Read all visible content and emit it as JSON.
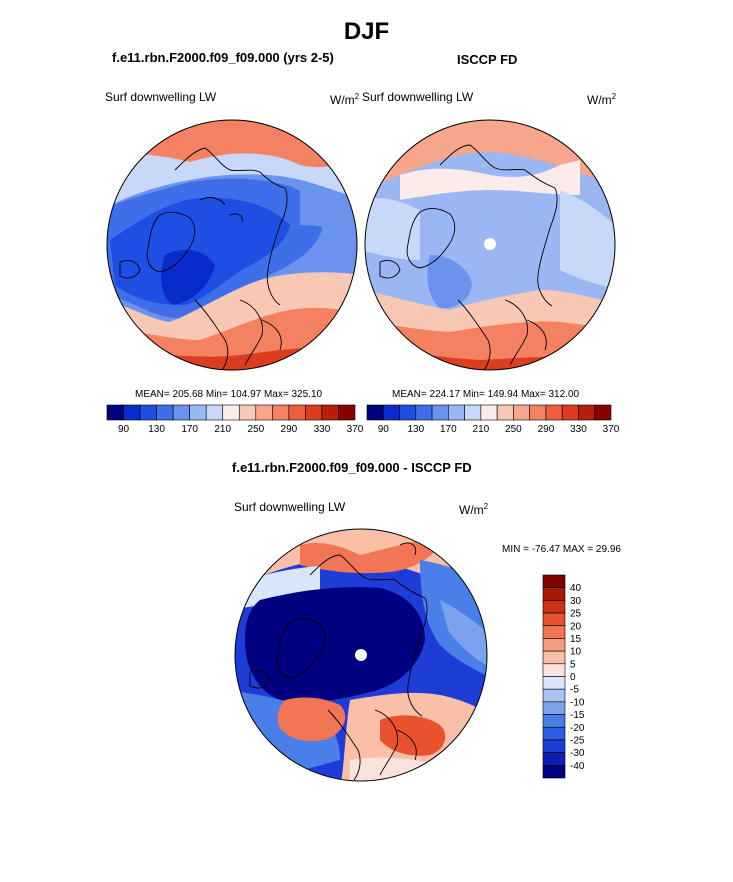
{
  "title": "DJF",
  "colors": {
    "abs_scale": [
      "#00007f",
      "#0a2bcb",
      "#1f4ee4",
      "#3f6fe8",
      "#6b93ee",
      "#9bb7f3",
      "#c8d8f8",
      "#fbecea",
      "#f9c8b4",
      "#f7a68c",
      "#f48262",
      "#ee5e3c",
      "#dd3d1f",
      "#b81d0d",
      "#880000"
    ],
    "diff_scale": [
      "#000080",
      "#0b1fb5",
      "#1e3cd6",
      "#2e5ce6",
      "#4a7ee9",
      "#7aa2ef",
      "#a9c3f4",
      "#d9e6fa",
      "#fbe3dd",
      "#f9bfa7",
      "#f69b7f",
      "#f27655",
      "#e8522e",
      "#cf3119",
      "#a81707",
      "#800000"
    ]
  },
  "panels": [
    {
      "title": "f.e11.rbn.F2000.f09_f09.000 (yrs 2-5)",
      "left_label": "Surf downwelling LW",
      "unit": "W/m",
      "unit_sup": "2",
      "stats": "MEAN= 205.68  Min= 104.97  Max= 325.10"
    },
    {
      "title": "ISCCP FD",
      "left_label": "Surf downwelling LW",
      "unit": "W/m",
      "unit_sup": "2",
      "stats": "MEAN= 224.17  Min= 149.94  Max= 312.00"
    },
    {
      "title": "f.e11.rbn.F2000.f09_f09.000 - ISCCP FD",
      "left_label": "Surf downwelling LW",
      "unit": "W/m",
      "unit_sup": "2",
      "stats": "MIN = -76.47 MAX =  29.96"
    }
  ],
  "chart_data": [
    {
      "type": "heatmap",
      "projection": "north polar stereographic",
      "title": "f.e11.rbn.F2000.f09_f09.000 (yrs 2-5)",
      "variable": "Surf downwelling LW",
      "units": "W/m2",
      "mean": 205.68,
      "min": 104.97,
      "max": 325.1,
      "colorbar_orientation": "horizontal",
      "colorbar_levels": [
        90,
        110,
        130,
        150,
        170,
        190,
        210,
        230,
        250,
        270,
        290,
        310,
        330,
        350,
        370
      ],
      "colorbar_tick_labels": [
        "90",
        "130",
        "170",
        "210",
        "250",
        "290",
        "330",
        "370"
      ]
    },
    {
      "type": "heatmap",
      "projection": "north polar stereographic",
      "title": "ISCCP FD",
      "variable": "Surf downwelling LW",
      "units": "W/m2",
      "mean": 224.17,
      "min": 149.94,
      "max": 312.0,
      "colorbar_orientation": "horizontal",
      "colorbar_levels": [
        90,
        110,
        130,
        150,
        170,
        190,
        210,
        230,
        250,
        270,
        290,
        310,
        330,
        350,
        370
      ],
      "colorbar_tick_labels": [
        "90",
        "130",
        "170",
        "210",
        "250",
        "290",
        "330",
        "370"
      ]
    },
    {
      "type": "heatmap",
      "projection": "north polar stereographic",
      "title": "f.e11.rbn.F2000.f09_f09.000 - ISCCP FD",
      "variable": "Surf downwelling LW",
      "units": "W/m2",
      "min": -76.47,
      "max": 29.96,
      "colorbar_orientation": "vertical",
      "colorbar_tick_labels": [
        "40",
        "30",
        "25",
        "20",
        "15",
        "10",
        "5",
        "0",
        "-5",
        "-10",
        "-15",
        "-20",
        "-25",
        "-30",
        "-40"
      ]
    }
  ]
}
